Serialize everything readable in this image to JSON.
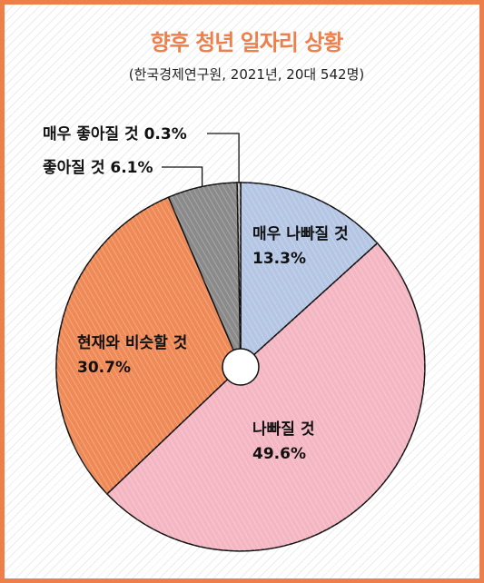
{
  "chart_data": {
    "type": "pie",
    "title": "향후 청년 일자리 상황",
    "subtitle": "(한국경제연구원, 2021년, 20대 542명)",
    "slices": [
      {
        "label": "매우 나빠질 것",
        "value": 13.3,
        "display": "13.3%",
        "color": "#b4c6e4"
      },
      {
        "label": "나빠질 것",
        "value": 49.6,
        "display": "49.6%",
        "color": "#f4b6c2"
      },
      {
        "label": "현재와 비슷할 것",
        "value": 30.7,
        "display": "30.7%",
        "color": "#ef8a57"
      },
      {
        "label": "좋아질 것",
        "value": 6.1,
        "display": "6.1%",
        "color": "#8a8a8a"
      },
      {
        "label": "매우 좋아질 것",
        "value": 0.3,
        "display": "0.3%",
        "color": "#c8c8c8"
      }
    ],
    "inside_labels": [
      "매우 나빠질 것",
      "나빠질 것",
      "현재와 비슷할 것"
    ],
    "outside_labels": [
      "좋아질 것",
      "매우 좋아질 것"
    ]
  }
}
